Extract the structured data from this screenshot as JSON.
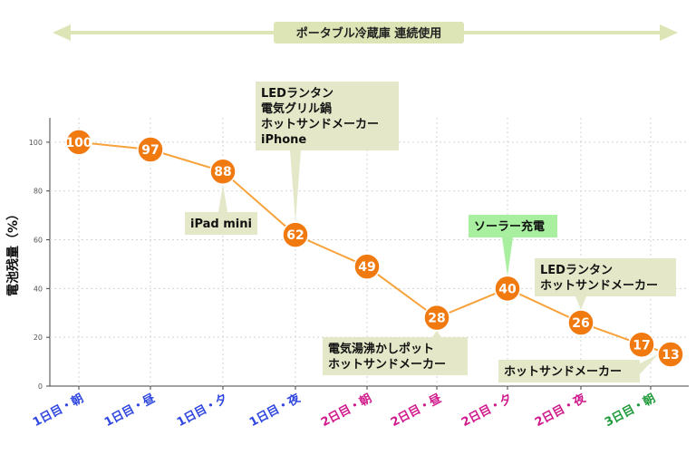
{
  "chart_data": {
    "type": "line",
    "title": "",
    "banner": "ポータブル冷蔵庫 連続使用",
    "ylabel": "電池残量（%）",
    "xlabel": "",
    "ylim": [
      0,
      110
    ],
    "yticks": [
      0,
      20,
      40,
      60,
      80,
      100
    ],
    "grid": true,
    "categories": [
      {
        "label": "1日目・朝",
        "color": "#2f47e0"
      },
      {
        "label": "1日目・昼",
        "color": "#2f47e0"
      },
      {
        "label": "1日目・夕",
        "color": "#2f47e0"
      },
      {
        "label": "1日目・夜",
        "color": "#2f47e0"
      },
      {
        "label": "2日目・朝",
        "color": "#d0198c"
      },
      {
        "label": "2日目・昼",
        "color": "#d0198c"
      },
      {
        "label": "2日目・夕",
        "color": "#d0198c"
      },
      {
        "label": "2日目・夜",
        "color": "#d0198c"
      },
      {
        "label": "3日目・朝",
        "color": "#1f9a3a"
      }
    ],
    "points": [
      {
        "x": "1日目・朝",
        "y": 100
      },
      {
        "x": "1日目・昼",
        "y": 97
      },
      {
        "x": "1日目・夕",
        "y": 88
      },
      {
        "x": "1日目・夜",
        "y": 62
      },
      {
        "x": "2日目・朝",
        "y": 49
      },
      {
        "x": "2日目・昼",
        "y": 28
      },
      {
        "x": "2日目・夕",
        "y": 40
      },
      {
        "x": "2日目・夜",
        "y": 26
      },
      {
        "x": "3日目・朝",
        "y": 17
      },
      {
        "x": "3日目・朝",
        "y": 13
      }
    ],
    "line_color": "#f7a23b",
    "marker_color": "#f07a10",
    "annotations": [
      {
        "lines": [
          "iPad mini"
        ],
        "color": "#e4e8c8",
        "point_index": 2
      },
      {
        "lines": [
          "LEDランタン",
          "電気グリル鍋",
          "ホットサンドメーカー",
          "iPhone"
        ],
        "color": "#e4e8c8",
        "point_index": 3
      },
      {
        "lines": [
          "電気湯沸かしポット",
          "ホットサンドメーカー"
        ],
        "color": "#e4e8c8",
        "point_index": 5
      },
      {
        "lines": [
          "ソーラー充電"
        ],
        "color": "#a8f0a0",
        "point_index": 6
      },
      {
        "lines": [
          "LEDランタン",
          "ホットサンドメーカー"
        ],
        "color": "#e4e8c8",
        "point_index": 7
      },
      {
        "lines": [
          "ホットサンドメーカー"
        ],
        "color": "#e4e8c8",
        "point_index": 9
      }
    ]
  }
}
